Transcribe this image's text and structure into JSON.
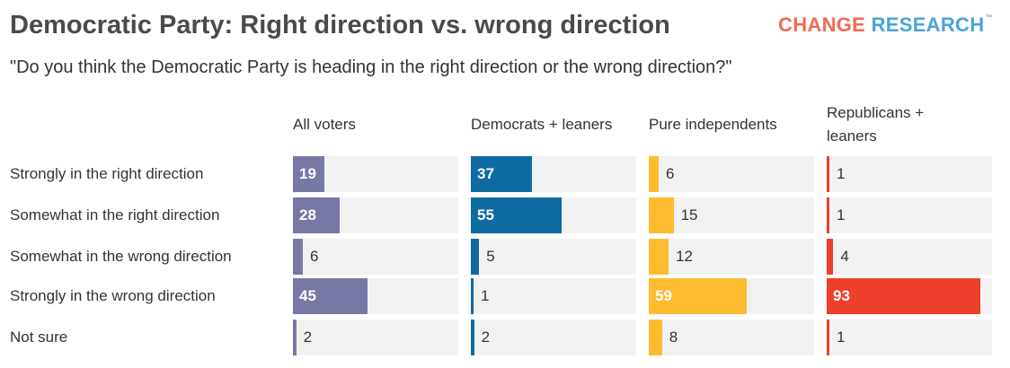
{
  "title": "Democratic Party: Right direction vs. wrong direction",
  "subtitle": "\"Do you think the Democratic Party is heading in the right direction or the wrong direction?\"",
  "logo": {
    "part1": "CHANGE",
    "part2": "RESEARCH",
    "mark": "™"
  },
  "chart_data": {
    "type": "bar",
    "orientation": "horizontal",
    "grouping": "small-multiples",
    "categories": [
      "Strongly in the right direction",
      "Somewhat in the right direction",
      "Somewhat in the wrong direction",
      "Strongly in the wrong direction",
      "Not sure"
    ],
    "xlim": [
      0,
      100
    ],
    "grid": false,
    "series": [
      {
        "name": "All voters",
        "color": "#7878a6",
        "values": [
          19,
          28,
          6,
          45,
          2
        ]
      },
      {
        "name": "Democrats + leaners",
        "color": "#0f6ca3",
        "values": [
          37,
          55,
          5,
          1,
          2
        ]
      },
      {
        "name": "Pure independents",
        "color": "#fdbb30",
        "values": [
          6,
          15,
          12,
          59,
          8
        ]
      },
      {
        "name": "Republicans + leaners",
        "color": "#ee3f2d",
        "values": [
          1,
          1,
          4,
          93,
          1
        ]
      }
    ]
  }
}
